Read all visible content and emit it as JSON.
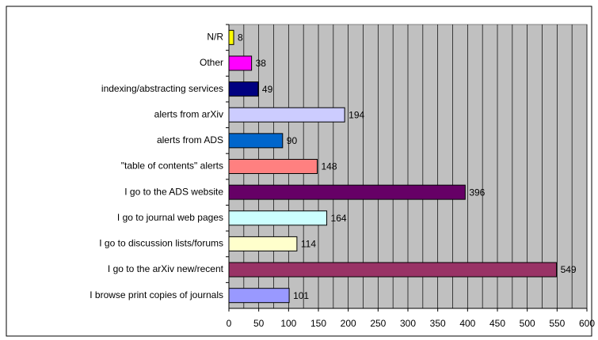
{
  "chart_data": {
    "type": "barh",
    "categories": [
      "N/R",
      "Other",
      "indexing/abstracting services",
      "alerts from arXiv",
      "alerts from ADS",
      "\"table of contents\" alerts",
      "I go to the ADS website",
      "I go to journal web pages",
      "I go to discussion lists/forums",
      "I go to the arXiv new/recent",
      "I browse print copies of journals"
    ],
    "values": [
      8,
      38,
      49,
      194,
      90,
      148,
      396,
      164,
      114,
      549,
      101
    ],
    "colors": [
      "#ffff00",
      "#ff00ff",
      "#000080",
      "#ccccff",
      "#0066cc",
      "#ff8080",
      "#660066",
      "#ccffff",
      "#ffffcc",
      "#993366",
      "#9999ff"
    ],
    "xlim": [
      0,
      600
    ],
    "xticks": [
      0,
      50,
      100,
      150,
      200,
      250,
      300,
      350,
      400,
      450,
      500,
      550,
      600
    ],
    "minor_grid": [
      25,
      75,
      125,
      175,
      225,
      275,
      325,
      375,
      425,
      475,
      525,
      575
    ],
    "grid": true
  }
}
